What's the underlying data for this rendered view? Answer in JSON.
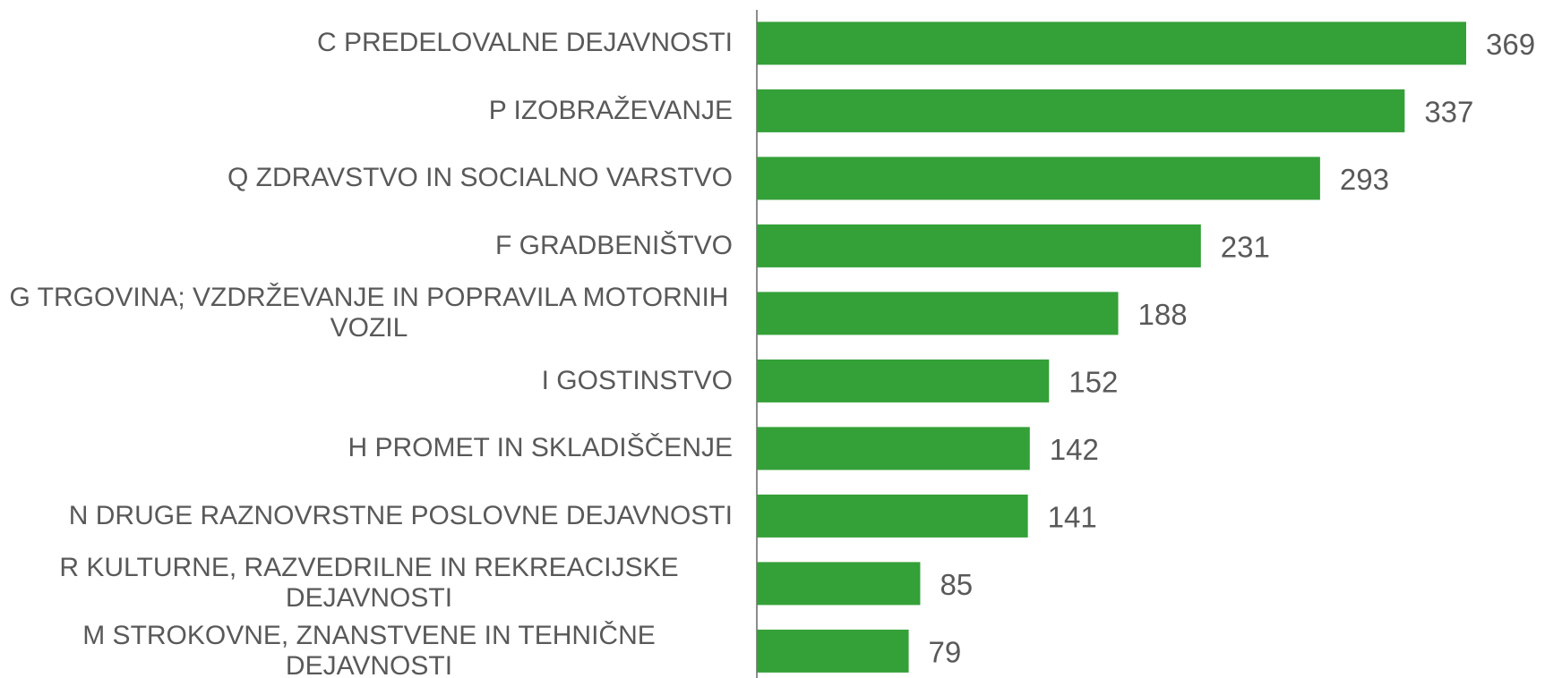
{
  "chart_data": {
    "type": "bar",
    "orientation": "horizontal",
    "color": "#34a038",
    "categories": [
      "C PREDELOVALNE DEJAVNOSTI",
      "P IZOBRAŽEVANJE",
      "Q ZDRAVSTVO IN SOCIALNO VARSTVO",
      "F GRADBENIŠTVO",
      "G TRGOVINA; VZDRŽEVANJE IN POPRAVILA MOTORNIH VOZIL",
      "I GOSTINSTVO",
      "H PROMET IN SKLADIŠČENJE",
      "N DRUGE RAZNOVRSTNE POSLOVNE DEJAVNOSTI",
      "R KULTURNE, RAZVEDRILNE IN REKREACIJSKE DEJAVNOSTI",
      "M STROKOVNE, ZNANSTVENE IN TEHNIČNE DEJAVNOSTI"
    ],
    "values": [
      369,
      337,
      293,
      231,
      188,
      152,
      142,
      141,
      85,
      79
    ]
  }
}
